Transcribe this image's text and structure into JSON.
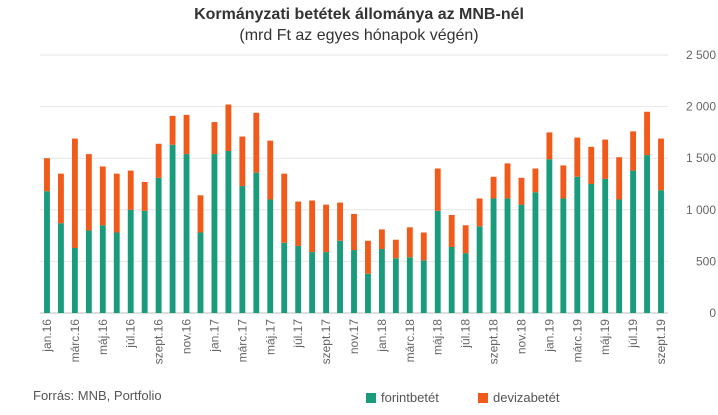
{
  "chart_data": {
    "type": "bar",
    "stacked": true,
    "title": "Kormányzati betétek állománya az MNB-nél",
    "subtitle": "(mrd Ft az egyes hónapok végén)",
    "ylim": [
      0,
      2500
    ],
    "yticks": [
      0,
      500,
      1000,
      1500,
      2000,
      2500
    ],
    "ytick_labels": [
      "0",
      "500",
      "1 000",
      "1 500",
      "2 000",
      "2 500"
    ],
    "y_axis_side": "right",
    "grid": "horizontal",
    "categories": [
      "jan.16",
      "febr.16",
      "márc.16",
      "ápr.16",
      "máj.16",
      "jún.16",
      "júl.16",
      "aug.16",
      "szept.16",
      "okt.16",
      "nov.16",
      "dec.16",
      "jan.17",
      "febr.17",
      "márc.17",
      "ápr.17",
      "máj.17",
      "jún.17",
      "júl.17",
      "aug.17",
      "szept.17",
      "okt.17",
      "nov.17",
      "dec.17",
      "jan.18",
      "febr.18",
      "márc.18",
      "ápr.18",
      "máj.18",
      "jún.18",
      "júl.18",
      "aug.18",
      "szept.18",
      "okt.18",
      "nov.18",
      "dec.18",
      "jan.19",
      "febr.19",
      "márc.19",
      "ápr.19",
      "máj.19",
      "jún.19",
      "júl.19",
      "aug.19",
      "szept.19"
    ],
    "xtick_labels": [
      "jan.16",
      "márc.16",
      "máj.16",
      "júl.16",
      "szept.16",
      "nov.16",
      "jan.17",
      "márc.17",
      "máj.17",
      "júl.17",
      "szept.17",
      "nov.17",
      "jan.18",
      "márc.18",
      "máj.18",
      "júl.18",
      "szept.18",
      "nov.18",
      "jan.19",
      "márc.19",
      "máj.19",
      "júl.19",
      "szept.19"
    ],
    "series": [
      {
        "name": "forintbetét",
        "color": "#1a9c7c",
        "values": [
          1180,
          870,
          630,
          800,
          850,
          780,
          1000,
          990,
          1310,
          1630,
          1540,
          780,
          1540,
          1570,
          1230,
          1360,
          1100,
          680,
          650,
          590,
          590,
          700,
          610,
          380,
          620,
          530,
          540,
          510,
          990,
          640,
          580,
          840,
          1110,
          1110,
          1050,
          1170,
          1490,
          1110,
          1320,
          1250,
          1300,
          1100,
          1380,
          1530,
          1190
        ]
      },
      {
        "name": "devizabetét",
        "color": "#f05a1a",
        "values": [
          320,
          480,
          1060,
          740,
          570,
          570,
          380,
          280,
          330,
          280,
          380,
          360,
          310,
          450,
          480,
          580,
          570,
          670,
          430,
          500,
          460,
          370,
          350,
          320,
          190,
          180,
          290,
          270,
          410,
          310,
          270,
          270,
          210,
          340,
          260,
          230,
          260,
          320,
          380,
          360,
          380,
          410,
          380,
          420,
          500
        ]
      }
    ]
  },
  "footer": {
    "source": "Forrás: MNB, Portfolio"
  }
}
